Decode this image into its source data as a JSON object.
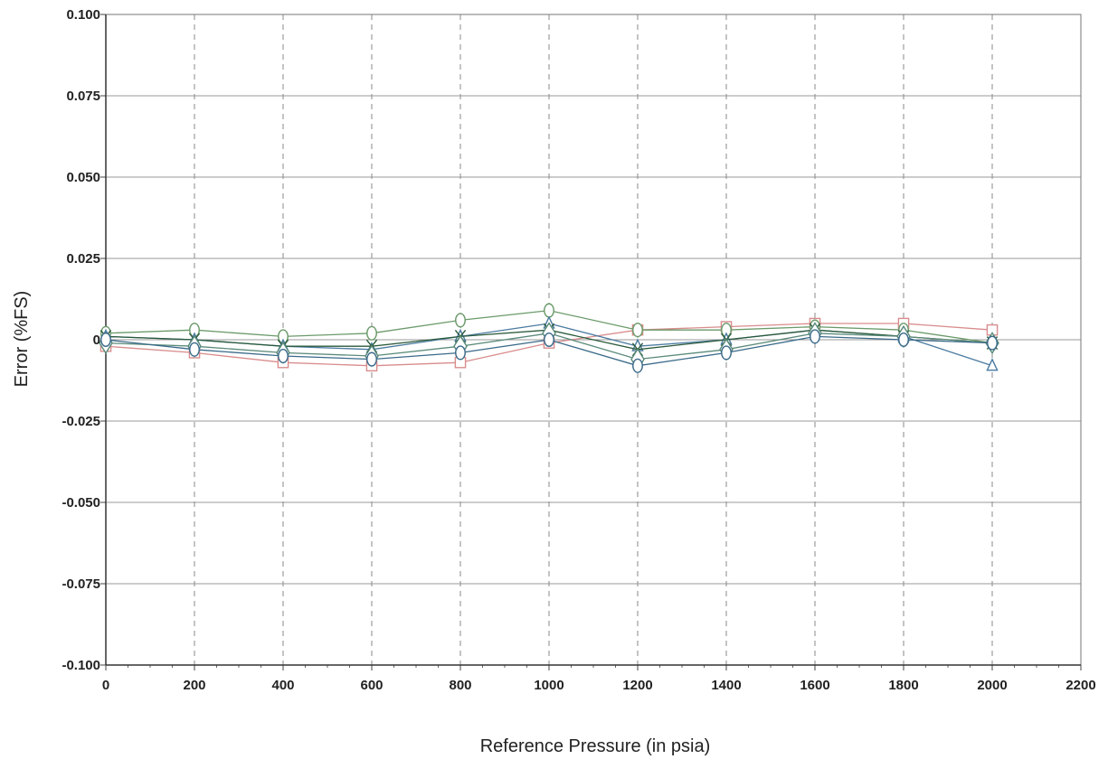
{
  "chart_data": {
    "type": "line",
    "xlabel": "Reference Pressure (in psia)",
    "ylabel": "Error (%FS)",
    "xlim": [
      0,
      2200
    ],
    "ylim": [
      -0.1,
      0.1
    ],
    "x_ticks": [
      "0",
      "200",
      "400",
      "600",
      "800",
      "1000",
      "1200",
      "1400",
      "1600",
      "1800",
      "2000",
      "2200"
    ],
    "x_tick_values": [
      0,
      200,
      400,
      600,
      800,
      1000,
      1200,
      1400,
      1600,
      1800,
      2000,
      2200
    ],
    "y_ticks": [
      "0.100",
      "0.075",
      "0.050",
      "0.025",
      "0",
      "-0.025",
      "-0.050",
      "-0.075",
      "-0.100"
    ],
    "y_tick_values": [
      0.1,
      0.075,
      0.05,
      0.025,
      0,
      -0.025,
      -0.05,
      -0.075,
      -0.1
    ],
    "grid": true,
    "x": [
      0,
      200,
      400,
      600,
      800,
      1000,
      1200,
      1400,
      1600,
      1800,
      2000
    ],
    "series": [
      {
        "marker": "square",
        "color": "#d98c8c",
        "values": [
          -0.002,
          -0.004,
          -0.007,
          -0.008,
          -0.007,
          -0.001,
          0.003,
          0.004,
          0.005,
          0.005,
          0.003
        ]
      },
      {
        "marker": "circle",
        "color": "#6a9a6a",
        "values": [
          0.002,
          0.003,
          0.001,
          0.002,
          0.006,
          0.009,
          0.003,
          0.003,
          0.004,
          0.003,
          -0.001
        ]
      },
      {
        "marker": "triangle",
        "color": "#4a7aa0",
        "values": [
          0.001,
          0.0,
          -0.002,
          -0.003,
          0.001,
          0.005,
          -0.002,
          0.0,
          0.003,
          0.001,
          -0.008
        ]
      },
      {
        "marker": "x",
        "color": "#2a5a3a",
        "values": [
          0.001,
          0.0,
          -0.002,
          -0.002,
          0.001,
          0.003,
          -0.003,
          0.0,
          0.003,
          0.001,
          -0.001
        ]
      },
      {
        "marker": "diamond",
        "color": "#5a8a7a",
        "values": [
          -0.001,
          -0.002,
          -0.004,
          -0.005,
          -0.002,
          0.002,
          -0.006,
          -0.003,
          0.002,
          0.001,
          -0.001
        ]
      },
      {
        "marker": "circle",
        "color": "#3a6a8a",
        "values": [
          0.0,
          -0.003,
          -0.005,
          -0.006,
          -0.004,
          0.0,
          -0.008,
          -0.004,
          0.001,
          0.0,
          -0.001
        ]
      }
    ]
  }
}
